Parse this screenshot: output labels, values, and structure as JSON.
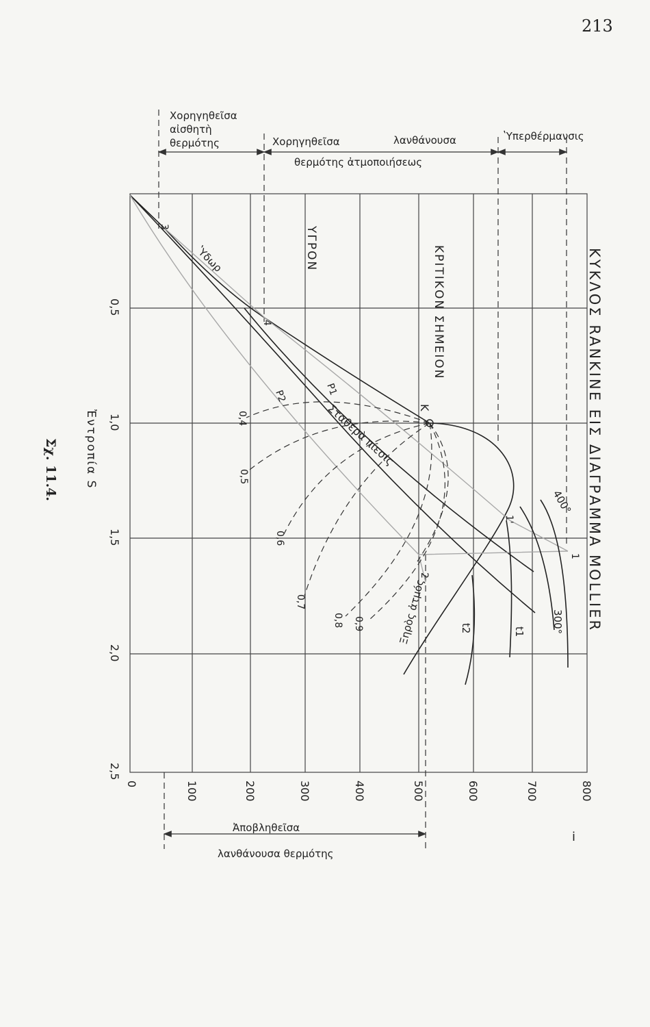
{
  "page_number": "213",
  "top_annotations": {
    "sensible": [
      "Χορηγηθεῖσα",
      "αἰσθητὴ",
      "θερμότης"
    ],
    "latent": [
      "Χορηγηθεῖσα",
      "λανθάνουσα",
      "θερμότης ἀτμοποιήσεως"
    ],
    "superheat": "ʽΥπερθέρμανσις"
  },
  "title": "ΚΥΚΛΟΣ RANKINE ΕΙΣ ΔΙΑΓΡΑΜΜΑ MOLLIER",
  "regions": {
    "liquid": "ΥΓΡΟΝ",
    "critical": "ΚΡΙΤΙΚΟΝ ΣΗΜΕΙΟΝ",
    "critical_point": "K"
  },
  "curve_labels": {
    "water": "ʽΥδωρ",
    "constant_pressure": "Σταθερὰ πίεσις",
    "p1": "P1",
    "p2": "P2",
    "dry_steam": "Ξηρὸς ἀτμός",
    "t400": "400°",
    "t300": "300°",
    "t1": "t1",
    "t2": "t2"
  },
  "points": [
    "3",
    "4",
    "1",
    "1'",
    "2"
  ],
  "dryness": [
    "0,4",
    "0,5",
    "0,6",
    "0,7",
    "0,8",
    "0,9"
  ],
  "s_ticks": [
    "0,5",
    "1,0",
    "1,5",
    "2,0",
    "2,5"
  ],
  "i_ticks": [
    0,
    100,
    200,
    300,
    400,
    500,
    600,
    700,
    800
  ],
  "s_label": "Ἐντροπία S",
  "i_label": "i",
  "bottom_annotation": [
    "Ἀποβληθεῖσα",
    "λανθάνουσα θερμότης"
  ],
  "caption": "Σχ. 11.4."
}
